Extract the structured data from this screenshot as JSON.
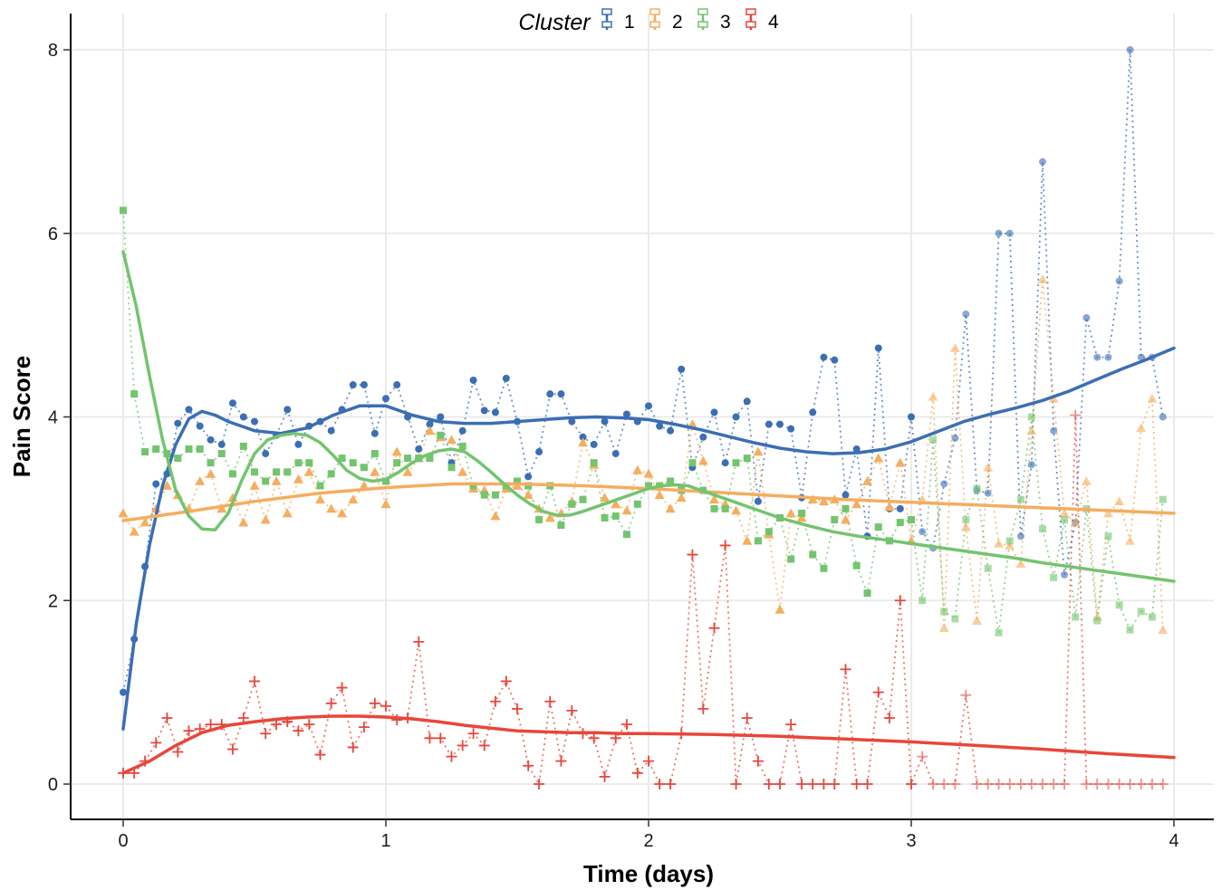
{
  "chart_data": {
    "type": "line",
    "xlabel": "Time (days)",
    "ylabel": "Pain Score",
    "xlim": [
      0,
      4
    ],
    "ylim": [
      -0.38,
      8.4
    ],
    "xticks": [
      "0",
      "1",
      "2",
      "3",
      "4"
    ],
    "yticks": [
      "0",
      "2",
      "4",
      "6",
      "8"
    ],
    "grid": true,
    "legend": {
      "title": "Cluster",
      "position": "top-center"
    },
    "series": [
      {
        "name": "1",
        "color": "#3b6eb4",
        "marker": "circle",
        "x": [
          0.0,
          0.042,
          0.083,
          0.125,
          0.167,
          0.208,
          0.25,
          0.292,
          0.333,
          0.375,
          0.417,
          0.458,
          0.5,
          0.542,
          0.583,
          0.625,
          0.667,
          0.708,
          0.75,
          0.792,
          0.833,
          0.875,
          0.917,
          0.958,
          1.0,
          1.042,
          1.083,
          1.125,
          1.167,
          1.208,
          1.25,
          1.292,
          1.333,
          1.375,
          1.417,
          1.458,
          1.5,
          1.542,
          1.583,
          1.625,
          1.667,
          1.708,
          1.75,
          1.792,
          1.833,
          1.875,
          1.917,
          1.958,
          2.0,
          2.042,
          2.083,
          2.125,
          2.167,
          2.208,
          2.25,
          2.292,
          2.333,
          2.375,
          2.417,
          2.458,
          2.5,
          2.542,
          2.583,
          2.625,
          2.667,
          2.708,
          2.75,
          2.792,
          2.833,
          2.875,
          2.917,
          2.958,
          3.0,
          3.042,
          3.083,
          3.125,
          3.167,
          3.208,
          3.25,
          3.292,
          3.333,
          3.375,
          3.417,
          3.458,
          3.5,
          3.542,
          3.583,
          3.625,
          3.667,
          3.708,
          3.75,
          3.792,
          3.833,
          3.875,
          3.917,
          3.958
        ],
        "values": [
          1.0,
          1.58,
          2.37,
          3.27,
          3.38,
          3.93,
          4.08,
          3.9,
          3.75,
          3.7,
          4.15,
          4.0,
          3.95,
          3.6,
          3.8,
          4.08,
          3.7,
          3.9,
          3.95,
          3.85,
          4.08,
          4.35,
          4.35,
          3.82,
          4.2,
          4.35,
          4.0,
          3.65,
          3.92,
          4.0,
          3.5,
          3.85,
          4.4,
          4.07,
          4.05,
          4.42,
          3.95,
          3.35,
          3.62,
          4.25,
          4.25,
          3.95,
          3.78,
          3.7,
          3.95,
          3.6,
          4.03,
          3.95,
          4.12,
          3.9,
          3.85,
          4.52,
          3.45,
          3.78,
          4.05,
          3.5,
          4.0,
          4.17,
          3.08,
          3.92,
          3.92,
          3.87,
          3.12,
          4.05,
          4.65,
          4.62,
          3.15,
          3.65,
          2.7,
          4.75,
          3.0,
          3.0,
          4.0,
          2.75,
          2.57,
          3.27,
          3.77,
          5.12,
          3.2,
          3.17,
          6.0,
          6.0,
          2.7,
          3.48,
          6.78,
          3.85,
          2.28,
          2.85,
          5.08,
          4.65,
          4.65,
          5.48,
          8.0,
          4.65,
          4.65,
          4.0
        ],
        "smooth_x": [
          0.0,
          0.05,
          0.1,
          0.15,
          0.2,
          0.25,
          0.3,
          0.35,
          0.4,
          0.5,
          0.6,
          0.7,
          0.8,
          0.9,
          1.0,
          1.1,
          1.2,
          1.3,
          1.4,
          1.5,
          1.6,
          1.7,
          1.8,
          1.9,
          2.0,
          2.1,
          2.2,
          2.3,
          2.4,
          2.5,
          2.6,
          2.7,
          2.8,
          2.9,
          3.0,
          3.1,
          3.2,
          3.3,
          3.4,
          3.5,
          3.6,
          3.7,
          3.8,
          3.9,
          4.0
        ],
        "smooth": [
          0.6,
          1.75,
          2.6,
          3.25,
          3.7,
          3.98,
          4.06,
          4.02,
          3.95,
          3.85,
          3.82,
          3.88,
          4.02,
          4.12,
          4.12,
          4.02,
          3.95,
          3.93,
          3.93,
          3.95,
          3.97,
          3.99,
          4.0,
          3.99,
          3.97,
          3.92,
          3.86,
          3.79,
          3.72,
          3.66,
          3.62,
          3.6,
          3.61,
          3.65,
          3.73,
          3.84,
          3.95,
          4.03,
          4.1,
          4.18,
          4.28,
          4.4,
          4.52,
          4.63,
          4.75
        ]
      },
      {
        "name": "2",
        "color": "#f5ad5e",
        "marker": "triangle",
        "x": [
          0.0,
          0.042,
          0.083,
          0.125,
          0.167,
          0.208,
          0.25,
          0.292,
          0.333,
          0.375,
          0.417,
          0.458,
          0.5,
          0.542,
          0.583,
          0.625,
          0.667,
          0.708,
          0.75,
          0.792,
          0.833,
          0.875,
          0.917,
          0.958,
          1.0,
          1.042,
          1.083,
          1.125,
          1.167,
          1.208,
          1.25,
          1.292,
          1.333,
          1.375,
          1.417,
          1.458,
          1.5,
          1.542,
          1.583,
          1.625,
          1.667,
          1.708,
          1.75,
          1.792,
          1.833,
          1.875,
          1.917,
          1.958,
          2.0,
          2.042,
          2.083,
          2.125,
          2.167,
          2.208,
          2.25,
          2.292,
          2.333,
          2.375,
          2.417,
          2.458,
          2.5,
          2.542,
          2.583,
          2.625,
          2.667,
          2.708,
          2.75,
          2.792,
          2.833,
          2.875,
          2.917,
          2.958,
          3.0,
          3.042,
          3.083,
          3.125,
          3.167,
          3.208,
          3.25,
          3.292,
          3.333,
          3.375,
          3.417,
          3.458,
          3.5,
          3.542,
          3.583,
          3.625,
          3.667,
          3.708,
          3.75,
          3.792,
          3.833,
          3.875,
          3.917,
          3.958
        ],
        "values": [
          2.95,
          2.75,
          2.85,
          3.0,
          3.25,
          3.15,
          3.0,
          3.3,
          3.38,
          3.0,
          3.12,
          2.85,
          3.25,
          2.88,
          3.3,
          2.95,
          3.32,
          3.4,
          3.1,
          3.0,
          2.95,
          3.1,
          3.25,
          3.4,
          3.05,
          3.62,
          3.4,
          3.55,
          3.85,
          3.78,
          3.75,
          3.4,
          3.22,
          3.2,
          2.92,
          3.22,
          3.25,
          3.15,
          3.0,
          2.9,
          2.95,
          3.08,
          3.72,
          3.48,
          3.12,
          3.05,
          2.98,
          3.42,
          3.38,
          3.15,
          3.0,
          3.12,
          3.92,
          3.52,
          3.1,
          3.05,
          2.98,
          2.65,
          3.62,
          2.72,
          1.9,
          2.95,
          2.9,
          3.1,
          3.08,
          3.1,
          2.88,
          3.05,
          3.3,
          3.55,
          3.02,
          3.5,
          2.65,
          3.1,
          4.22,
          1.7,
          4.75,
          2.8,
          1.78,
          3.45,
          2.62,
          2.6,
          2.4,
          3.85,
          5.5,
          4.2,
          2.95,
          2.85,
          3.3,
          1.82,
          2.95,
          3.08,
          2.65,
          3.88,
          4.2,
          1.68
        ],
        "smooth_x": [
          0.0,
          0.25,
          0.5,
          0.75,
          1.0,
          1.25,
          1.5,
          1.75,
          2.0,
          2.25,
          2.5,
          2.75,
          3.0,
          3.25,
          3.5,
          3.75,
          4.0
        ],
        "smooth": [
          2.87,
          2.97,
          3.08,
          3.17,
          3.23,
          3.27,
          3.27,
          3.25,
          3.22,
          3.18,
          3.14,
          3.1,
          3.07,
          3.04,
          3.01,
          2.98,
          2.95
        ]
      },
      {
        "name": "3",
        "color": "#73c46e",
        "marker": "square",
        "x": [
          0.0,
          0.042,
          0.083,
          0.125,
          0.167,
          0.208,
          0.25,
          0.292,
          0.333,
          0.375,
          0.417,
          0.458,
          0.5,
          0.542,
          0.583,
          0.625,
          0.667,
          0.708,
          0.75,
          0.792,
          0.833,
          0.875,
          0.917,
          0.958,
          1.0,
          1.042,
          1.083,
          1.125,
          1.167,
          1.208,
          1.25,
          1.292,
          1.333,
          1.375,
          1.417,
          1.458,
          1.5,
          1.542,
          1.583,
          1.625,
          1.667,
          1.708,
          1.75,
          1.792,
          1.833,
          1.875,
          1.917,
          1.958,
          2.0,
          2.042,
          2.083,
          2.125,
          2.167,
          2.208,
          2.25,
          2.292,
          2.333,
          2.375,
          2.417,
          2.458,
          2.5,
          2.542,
          2.583,
          2.625,
          2.667,
          2.708,
          2.75,
          2.792,
          2.833,
          2.875,
          2.917,
          2.958,
          3.0,
          3.042,
          3.083,
          3.125,
          3.167,
          3.208,
          3.25,
          3.292,
          3.333,
          3.375,
          3.417,
          3.458,
          3.5,
          3.542,
          3.583,
          3.625,
          3.667,
          3.708,
          3.75,
          3.792,
          3.833,
          3.875,
          3.917,
          3.958
        ],
        "values": [
          6.25,
          4.25,
          3.62,
          3.65,
          3.6,
          3.55,
          3.65,
          3.65,
          3.5,
          3.6,
          3.38,
          3.68,
          3.4,
          3.3,
          3.4,
          3.4,
          3.5,
          3.5,
          3.25,
          3.38,
          3.55,
          3.5,
          3.45,
          3.6,
          3.3,
          3.5,
          3.55,
          3.55,
          3.55,
          3.8,
          3.45,
          3.68,
          3.25,
          3.15,
          3.15,
          3.25,
          3.3,
          3.25,
          2.88,
          3.25,
          2.82,
          3.05,
          3.1,
          3.5,
          2.9,
          2.92,
          2.72,
          3.05,
          3.25,
          3.25,
          3.3,
          3.2,
          3.5,
          3.2,
          3.0,
          3.0,
          3.5,
          3.55,
          2.65,
          2.75,
          2.9,
          2.45,
          2.95,
          2.5,
          2.35,
          2.88,
          3.0,
          2.38,
          2.08,
          2.8,
          2.65,
          2.85,
          2.88,
          2.0,
          3.75,
          1.88,
          1.8,
          2.88,
          3.22,
          2.35,
          1.65,
          2.65,
          3.1,
          4.0,
          2.78,
          2.25,
          2.88,
          1.82,
          3.0,
          1.78,
          2.7,
          1.95,
          1.68,
          1.88,
          1.82,
          3.1
        ],
        "smooth_x": [
          0.0,
          0.05,
          0.1,
          0.15,
          0.2,
          0.25,
          0.3,
          0.35,
          0.4,
          0.45,
          0.5,
          0.55,
          0.6,
          0.65,
          0.7,
          0.75,
          0.8,
          0.85,
          0.9,
          0.95,
          1.0,
          1.05,
          1.1,
          1.15,
          1.2,
          1.25,
          1.3,
          1.35,
          1.4,
          1.45,
          1.5,
          1.55,
          1.6,
          1.65,
          1.7,
          1.75,
          1.8,
          1.85,
          1.9,
          1.95,
          2.0,
          2.05,
          2.1,
          2.15,
          2.2,
          2.3,
          2.4,
          2.5,
          2.6,
          2.7,
          2.8,
          2.9,
          3.0,
          3.1,
          3.2,
          3.3,
          3.4,
          3.5,
          3.6,
          3.7,
          3.8,
          3.9,
          4.0
        ],
        "smooth": [
          5.8,
          5.2,
          4.45,
          3.75,
          3.2,
          2.92,
          2.78,
          2.77,
          2.95,
          3.3,
          3.6,
          3.75,
          3.8,
          3.82,
          3.8,
          3.72,
          3.58,
          3.42,
          3.33,
          3.3,
          3.32,
          3.4,
          3.5,
          3.58,
          3.63,
          3.65,
          3.62,
          3.52,
          3.4,
          3.27,
          3.15,
          3.05,
          2.97,
          2.93,
          2.93,
          2.97,
          3.02,
          3.07,
          3.12,
          3.17,
          3.22,
          3.25,
          3.26,
          3.25,
          3.2,
          3.1,
          3.0,
          2.9,
          2.82,
          2.75,
          2.7,
          2.66,
          2.62,
          2.58,
          2.54,
          2.5,
          2.46,
          2.41,
          2.37,
          2.33,
          2.29,
          2.25,
          2.21
        ]
      },
      {
        "name": "4",
        "color": "#e8463a",
        "marker": "cross",
        "x": [
          0.0,
          0.042,
          0.083,
          0.125,
          0.167,
          0.208,
          0.25,
          0.292,
          0.333,
          0.375,
          0.417,
          0.458,
          0.5,
          0.542,
          0.583,
          0.625,
          0.667,
          0.708,
          0.75,
          0.792,
          0.833,
          0.875,
          0.917,
          0.958,
          1.0,
          1.042,
          1.083,
          1.125,
          1.167,
          1.208,
          1.25,
          1.292,
          1.333,
          1.375,
          1.417,
          1.458,
          1.5,
          1.542,
          1.583,
          1.625,
          1.667,
          1.708,
          1.75,
          1.792,
          1.833,
          1.875,
          1.917,
          1.958,
          2.0,
          2.042,
          2.083,
          2.125,
          2.167,
          2.208,
          2.25,
          2.292,
          2.333,
          2.375,
          2.417,
          2.458,
          2.5,
          2.542,
          2.583,
          2.625,
          2.667,
          2.708,
          2.75,
          2.792,
          2.833,
          2.875,
          2.917,
          2.958,
          3.0,
          3.042,
          3.083,
          3.125,
          3.167,
          3.208,
          3.25,
          3.292,
          3.333,
          3.375,
          3.417,
          3.458,
          3.5,
          3.542,
          3.583,
          3.625,
          3.667,
          3.708,
          3.75,
          3.792,
          3.833,
          3.875,
          3.917,
          3.958
        ],
        "values": [
          0.12,
          0.12,
          0.25,
          0.45,
          0.72,
          0.35,
          0.58,
          0.6,
          0.65,
          0.65,
          0.38,
          0.72,
          1.12,
          0.55,
          0.65,
          0.68,
          0.58,
          0.65,
          0.32,
          0.88,
          1.05,
          0.4,
          0.62,
          0.88,
          0.85,
          0.7,
          0.72,
          1.55,
          0.5,
          0.5,
          0.3,
          0.42,
          0.55,
          0.42,
          0.9,
          1.12,
          0.82,
          0.2,
          0.0,
          0.9,
          0.25,
          0.8,
          0.55,
          0.5,
          0.08,
          0.5,
          0.65,
          0.12,
          0.25,
          0.0,
          0.0,
          0.55,
          2.5,
          0.82,
          1.7,
          2.6,
          0.0,
          0.72,
          0.25,
          0.0,
          0.0,
          0.65,
          0.0,
          0.0,
          0.0,
          0.0,
          1.25,
          0.0,
          0.0,
          1.0,
          0.72,
          2.0,
          0.0,
          0.3,
          0.0,
          0.0,
          0.0,
          0.97,
          0.0,
          0.0,
          0.0,
          0.0,
          0.0,
          0.0,
          0.0,
          0.0,
          0.0,
          4.02,
          0.0,
          0.0,
          0.0,
          0.0,
          0.0,
          0.0,
          0.0,
          0.0
        ],
        "smooth_x": [
          0.0,
          0.1,
          0.2,
          0.3,
          0.4,
          0.5,
          0.6,
          0.7,
          0.8,
          0.9,
          1.0,
          1.1,
          1.2,
          1.3,
          1.4,
          1.5,
          1.6,
          1.7,
          1.8,
          1.9,
          2.0,
          2.25,
          2.5,
          2.75,
          3.0,
          3.25,
          3.5,
          3.75,
          4.0
        ],
        "smooth": [
          0.12,
          0.25,
          0.42,
          0.56,
          0.64,
          0.68,
          0.71,
          0.73,
          0.74,
          0.74,
          0.73,
          0.71,
          0.68,
          0.64,
          0.61,
          0.58,
          0.57,
          0.56,
          0.56,
          0.55,
          0.55,
          0.54,
          0.52,
          0.49,
          0.46,
          0.42,
          0.38,
          0.33,
          0.29
        ]
      }
    ]
  }
}
